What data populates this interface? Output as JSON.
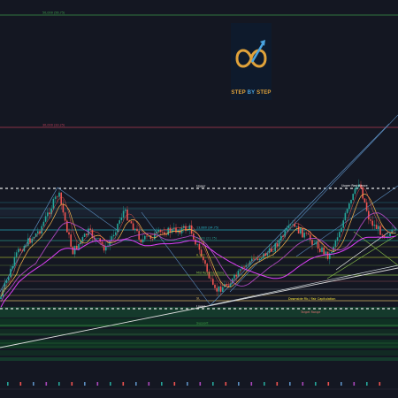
{
  "logo": {
    "word_1": "STEP",
    "word_2": "BY",
    "word_3": "STEP",
    "color_gold": "#e0a23a",
    "color_blue": "#4aa3df",
    "icon": "infinity-arrow-logo"
  },
  "chart_data": {
    "type": "line",
    "title": "",
    "levels": [
      {
        "label": "50,000 (56.75)",
        "price": 50000,
        "color": "#3fa34d"
      },
      {
        "label": "30,000 (33.25)",
        "price": 30000,
        "color": "#c2405a"
      },
      {
        "label": "Upper",
        "price": 18000,
        "color": "#ffffff",
        "style": "dotted"
      },
      {
        "label": "13,880 (34.75)",
        "price": 13880,
        "color": "#29b6c6"
      },
      {
        "label": "9,300 (21.75)",
        "price": 9300,
        "color": "#2a9d8f"
      },
      {
        "label": "8,300",
        "price": 8300,
        "color": "#a6b52e"
      },
      {
        "label": "Mid Reversal Zone",
        "price": 7800,
        "color": "#8bc34a"
      },
      {
        "label": "SL",
        "price": 5400,
        "color": "#e9c46a"
      },
      {
        "label": "Lower",
        "price": 4300,
        "color": "#ffffff",
        "style": "dotted"
      },
      {
        "label": "Support",
        "price": 3300,
        "color": "#43a047"
      }
    ],
    "annotations": [
      "Upper Resistance",
      "Downside Fib / Fair Capitulation",
      "Target Range"
    ],
    "grid": false
  }
}
